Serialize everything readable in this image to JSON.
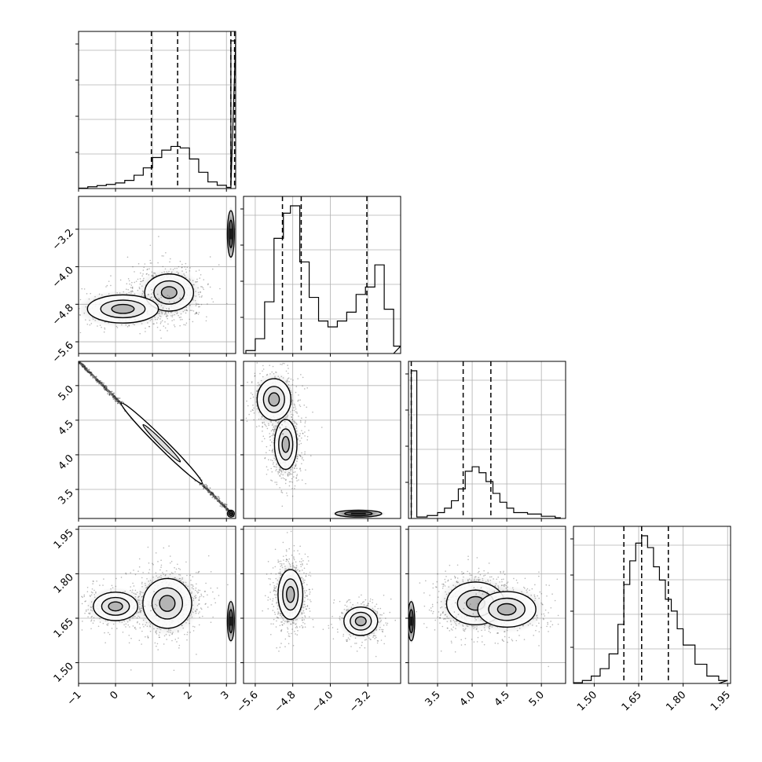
{
  "figure": {
    "type": "corner-plot",
    "background": "#ffffff",
    "line_color": "#000000",
    "grid_color": "#b0b0b0",
    "grid": true
  },
  "chart_data": {
    "type": "corner",
    "parameters": [
      {
        "id": "p1",
        "range": [
          -1,
          3.25
        ],
        "ticks": [
          -1,
          0,
          1,
          2,
          3
        ],
        "tick_labels": [
          "−1",
          "0",
          "1",
          "2",
          "3"
        ],
        "quantiles": [
          0.97,
          1.68,
          3.12,
          3.22
        ],
        "histogram": {
          "x": [
            -1.0,
            -0.75,
            -0.5,
            -0.25,
            0.0,
            0.25,
            0.5,
            0.75,
            1.0,
            1.25,
            1.5,
            1.75,
            2.0,
            2.25,
            2.5,
            2.75,
            3.0,
            3.12
          ],
          "y": [
            0.003,
            0.012,
            0.02,
            0.028,
            0.038,
            0.055,
            0.09,
            0.14,
            0.21,
            0.26,
            0.285,
            0.275,
            0.2,
            0.11,
            0.045,
            0.022,
            0.008,
            1.0
          ]
        }
      },
      {
        "id": "p2",
        "range": [
          -5.85,
          -2.5
        ],
        "ticks": [
          -5.6,
          -4.8,
          -4.0,
          -3.2
        ],
        "tick_labels": [
          "−5.6",
          "−4.8",
          "−4.0",
          "−3.2"
        ],
        "quantiles": [
          -5.02,
          -4.62,
          -3.22
        ],
        "histogram": {
          "x": [
            -5.8,
            -5.6,
            -5.4,
            -5.2,
            -5.0,
            -4.85,
            -4.65,
            -4.45,
            -4.25,
            -4.05,
            -3.85,
            -3.65,
            -3.45,
            -3.25,
            -3.05,
            -2.85,
            -2.65
          ],
          "y": [
            0.02,
            0.1,
            0.35,
            0.78,
            0.95,
            1.0,
            0.62,
            0.38,
            0.22,
            0.18,
            0.22,
            0.28,
            0.4,
            0.45,
            0.6,
            0.3,
            0.05
          ]
        }
      },
      {
        "id": "p3",
        "range": [
          3.08,
          5.35
        ],
        "ticks": [
          3.5,
          4.0,
          4.5,
          5.0
        ],
        "tick_labels": [
          "3.5",
          "4.0",
          "4.5",
          "5.0"
        ],
        "quantiles": [
          3.12,
          3.87,
          4.27
        ],
        "histogram": {
          "x": [
            3.12,
            3.2,
            3.35,
            3.5,
            3.6,
            3.7,
            3.8,
            3.9,
            4.0,
            4.1,
            4.2,
            4.3,
            4.4,
            4.5,
            4.6,
            4.8,
            5.0,
            5.2
          ],
          "y": [
            1.0,
            0.01,
            0.02,
            0.04,
            0.07,
            0.12,
            0.2,
            0.32,
            0.35,
            0.31,
            0.25,
            0.17,
            0.11,
            0.07,
            0.04,
            0.03,
            0.015,
            0.005
          ]
        }
      },
      {
        "id": "p4",
        "range": [
          1.43,
          1.96
        ],
        "ticks": [
          1.5,
          1.65,
          1.8,
          1.95
        ],
        "tick_labels": [
          "1.50",
          "1.65",
          "1.80",
          "1.95"
        ],
        "quantiles": [
          1.6,
          1.66,
          1.75
        ],
        "histogram": {
          "x": [
            1.43,
            1.46,
            1.49,
            1.52,
            1.55,
            1.58,
            1.6,
            1.62,
            1.64,
            1.66,
            1.68,
            1.7,
            1.72,
            1.74,
            1.76,
            1.78,
            1.8,
            1.84,
            1.88,
            1.92
          ],
          "y": [
            0.005,
            0.02,
            0.05,
            0.1,
            0.2,
            0.4,
            0.67,
            0.83,
            0.95,
            1.0,
            0.92,
            0.79,
            0.7,
            0.57,
            0.49,
            0.37,
            0.26,
            0.13,
            0.05,
            0.02
          ]
        }
      }
    ],
    "pairs": [
      {
        "x": "p1",
        "y": "p2",
        "blobs": [
          {
            "cx": 1.45,
            "cy": -4.55,
            "sx": 0.55,
            "sy": 0.33
          },
          {
            "cx": 0.2,
            "cy": -4.9,
            "sx": 0.8,
            "sy": 0.25
          }
        ],
        "edge_blob": {
          "cx": 3.12,
          "cy": -3.3,
          "sx": 0.06,
          "sy": 0.45
        }
      },
      {
        "x": "p1",
        "y": "p3",
        "line": {
          "x0": -1,
          "y0": 5.35,
          "x1": 3.2,
          "y1": 3.12
        },
        "edge_blob": {
          "cx": 3.12,
          "cy": 3.15,
          "sx": 0.08,
          "sy": 0.03
        }
      },
      {
        "x": "p1",
        "y": "p4",
        "blobs": [
          {
            "cx": 1.4,
            "cy": 1.7,
            "sx": 0.55,
            "sy": 0.07
          },
          {
            "cx": 0.0,
            "cy": 1.69,
            "sx": 0.5,
            "sy": 0.04
          }
        ],
        "edge_blob": {
          "cx": 3.12,
          "cy": 1.64,
          "sx": 0.06,
          "sy": 0.06
        }
      },
      {
        "x": "p2",
        "y": "p3",
        "blobs": [
          {
            "cx": -4.95,
            "cy": 4.15,
            "sx": 0.2,
            "sy": 0.3
          },
          {
            "cx": -5.2,
            "cy": 4.8,
            "sx": 0.3,
            "sy": 0.25
          }
        ],
        "edge_blob": {
          "cx": -3.4,
          "cy": 3.15,
          "sx": 0.45,
          "sy": 0.03
        }
      },
      {
        "x": "p2",
        "y": "p4",
        "blobs": [
          {
            "cx": -4.85,
            "cy": 1.73,
            "sx": 0.22,
            "sy": 0.07
          },
          {
            "cx": -3.35,
            "cy": 1.64,
            "sx": 0.3,
            "sy": 0.04
          }
        ]
      },
      {
        "x": "p3",
        "y": "p4",
        "blobs": [
          {
            "cx": 4.05,
            "cy": 1.7,
            "sx": 0.35,
            "sy": 0.06
          },
          {
            "cx": 4.5,
            "cy": 1.68,
            "sx": 0.35,
            "sy": 0.05
          }
        ],
        "edge_blob": {
          "cx": 3.12,
          "cy": 1.64,
          "sx": 0.03,
          "sy": 0.06
        }
      }
    ]
  }
}
